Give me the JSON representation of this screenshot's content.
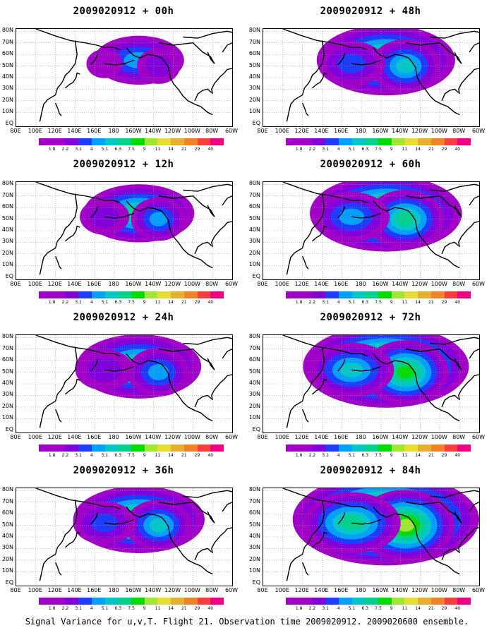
{
  "panels": [
    {
      "title": "2009020912 + 00h",
      "intensity": 0.3,
      "col": 0,
      "row": 0
    },
    {
      "title": "2009020912 + 48h",
      "intensity": 0.65,
      "col": 1,
      "row": 0
    },
    {
      "title": "2009020912 + 12h",
      "intensity": 0.45,
      "col": 0,
      "row": 1
    },
    {
      "title": "2009020912 + 60h",
      "intensity": 0.75,
      "col": 1,
      "row": 1
    },
    {
      "title": "2009020912 + 24h",
      "intensity": 0.55,
      "col": 0,
      "row": 2
    },
    {
      "title": "2009020912 + 72h",
      "intensity": 0.85,
      "col": 1,
      "row": 2
    },
    {
      "title": "2009020912 + 36h",
      "intensity": 0.6,
      "col": 0,
      "row": 3
    },
    {
      "title": "2009020912 + 84h",
      "intensity": 1.0,
      "col": 1,
      "row": 3
    }
  ],
  "lat_labels": [
    "80N",
    "70N",
    "60N",
    "50N",
    "40N",
    "30N",
    "20N",
    "10N",
    "EQ"
  ],
  "lon_labels": [
    "80E",
    "100E",
    "120E",
    "140E",
    "160E",
    "180",
    "160W",
    "140W",
    "120W",
    "100W",
    "80W",
    "60W"
  ],
  "colorbar": {
    "labels": [
      "1.8",
      "2.2",
      "3.1",
      "4",
      "5.1",
      "6.3",
      "7.5",
      "9",
      "11",
      "14",
      "21",
      "29",
      "40"
    ],
    "colors": [
      "#a000c8",
      "#8200dc",
      "#1e3cff",
      "#00a0ff",
      "#00c8c8",
      "#00d28c",
      "#00dc00",
      "#a0e632",
      "#e6dc32",
      "#e6af2d",
      "#f08228",
      "#fa3c3c",
      "#f00082"
    ]
  },
  "caption": "Signal Variance for u,v,T. Flight 21. Observation time 2009020912. 2009020600 ensemble."
}
